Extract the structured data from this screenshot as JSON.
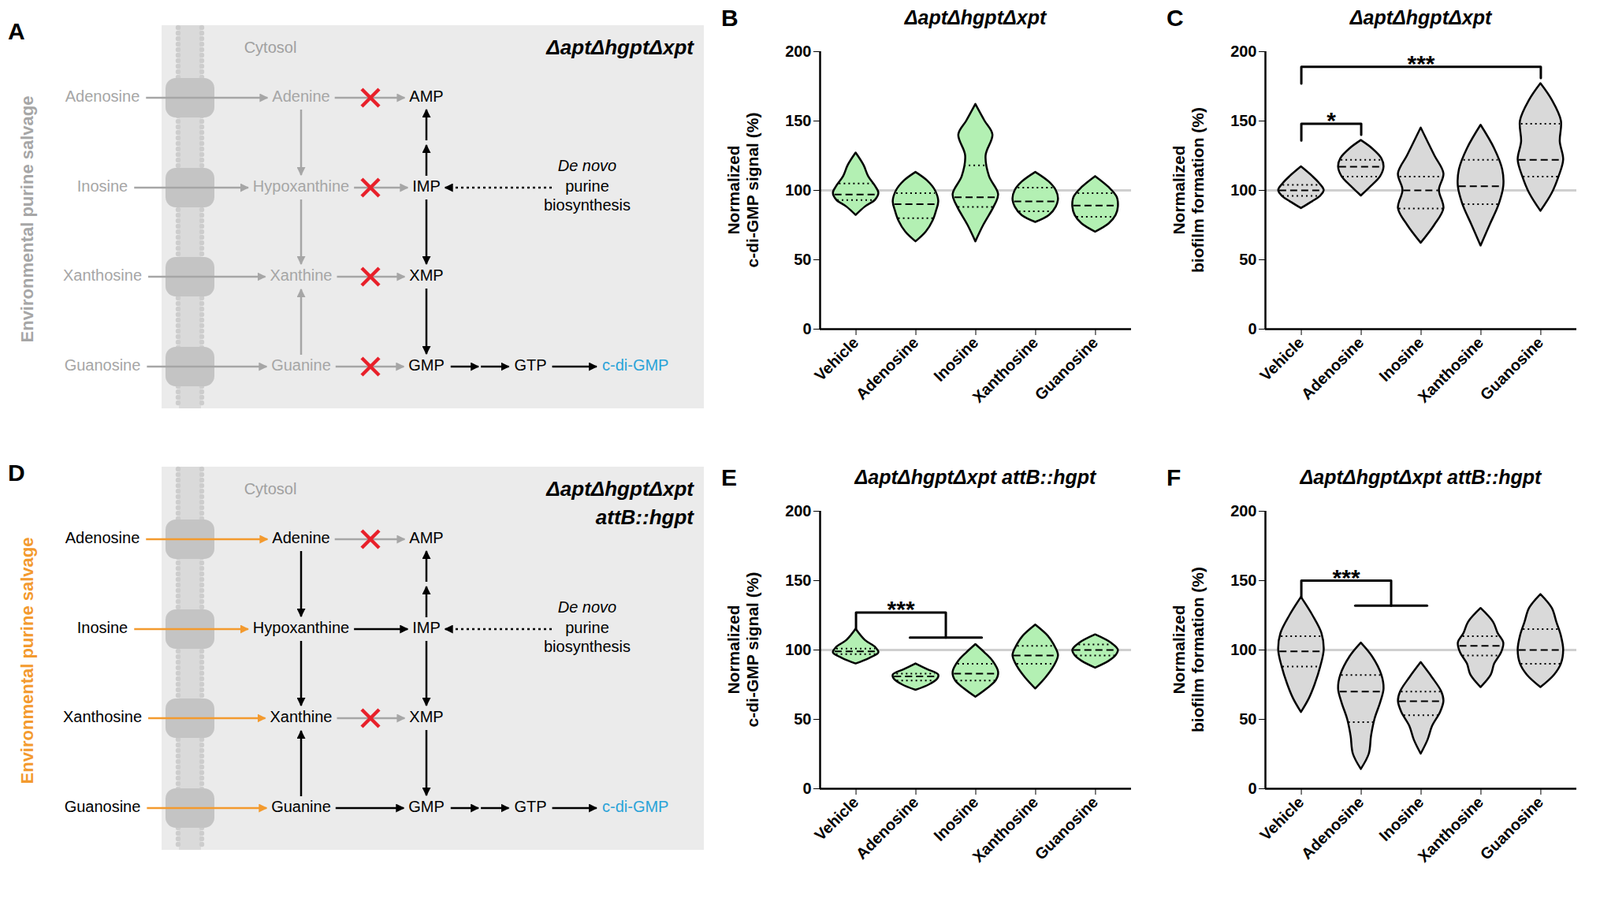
{
  "diagrams": [
    {
      "panel": "A",
      "title": [
        "ΔaptΔhgptΔxpt"
      ],
      "side_label": "Environmental purine salvage",
      "cytosol": "Cytosol",
      "nucleosides": [
        "Adenosine",
        "Inosine",
        "Xanthosine",
        "Guanosine"
      ],
      "bases": [
        "Adenine",
        "Hypoxanthine",
        "Xanthine",
        "Guanine"
      ],
      "nucleotides": [
        "AMP",
        "IMP",
        "XMP",
        "GMP"
      ],
      "de_novo": [
        "De novo",
        "purine",
        "biosynthesis"
      ],
      "downstream": [
        "GTP",
        "c-di-GMP"
      ],
      "blocked": [
        "AMP",
        "IMP",
        "XMP",
        "GMP"
      ],
      "salvage_active": false
    },
    {
      "panel": "D",
      "title": [
        "ΔaptΔhgptΔxpt",
        "attB::hgpt"
      ],
      "side_label": "Environmental purine salvage",
      "cytosol": "Cytosol",
      "nucleosides": [
        "Adenosine",
        "Inosine",
        "Xanthosine",
        "Guanosine"
      ],
      "bases": [
        "Adenine",
        "Hypoxanthine",
        "Xanthine",
        "Guanine"
      ],
      "nucleotides": [
        "AMP",
        "IMP",
        "XMP",
        "GMP"
      ],
      "de_novo": [
        "De novo",
        "purine",
        "biosynthesis"
      ],
      "downstream": [
        "GTP",
        "c-di-GMP"
      ],
      "blocked": [
        "AMP",
        "XMP"
      ],
      "salvage_active": true
    }
  ],
  "chart_data": [
    {
      "panel": "B",
      "type": "violin",
      "title": "ΔaptΔhgptΔxpt",
      "ylabel": "Normalized\nc-di-GMP signal (%)",
      "categories": [
        "Vehicle",
        "Adenosine",
        "Inosine",
        "Xanthosine",
        "Guanosine"
      ],
      "color": "#b3f0b3",
      "ylim": [
        0,
        200
      ],
      "yticks": [
        0,
        50,
        100,
        150,
        200
      ],
      "reference_line": 100,
      "violins": [
        {
          "y": [
            82,
            88,
            93,
            98,
            103,
            110,
            118,
            127
          ],
          "density": [
            0,
            0.4,
            0.85,
            1,
            0.85,
            0.55,
            0.35,
            0
          ],
          "median": 97,
          "q1": 93,
          "q3": 105
        },
        {
          "y": [
            63,
            70,
            78,
            85,
            92,
            100,
            107,
            113
          ],
          "density": [
            0,
            0.45,
            0.75,
            0.9,
            1,
            0.85,
            0.5,
            0
          ],
          "median": 90,
          "q1": 80,
          "q3": 98
        },
        {
          "y": [
            63,
            75,
            88,
            97,
            110,
            125,
            140,
            150,
            162
          ],
          "density": [
            0,
            0.35,
            0.8,
            1,
            0.6,
            0.45,
            0.75,
            0.4,
            0
          ],
          "median": 95,
          "q1": 88,
          "q3": 118
        },
        {
          "y": [
            77,
            82,
            88,
            94,
            100,
            106,
            113
          ],
          "density": [
            0,
            0.6,
            0.9,
            1,
            0.9,
            0.6,
            0
          ],
          "median": 92,
          "q1": 85,
          "q3": 102
        },
        {
          "y": [
            70,
            76,
            82,
            88,
            95,
            102,
            110
          ],
          "density": [
            0,
            0.6,
            0.9,
            1,
            0.95,
            0.6,
            0
          ],
          "median": 89,
          "q1": 81,
          "q3": 98
        }
      ],
      "annotations": []
    },
    {
      "panel": "C",
      "type": "violin",
      "title": "ΔaptΔhgptΔxpt",
      "ylabel": "Normalized\nbiofilm formation (%)",
      "categories": [
        "Vehicle",
        "Adenosine",
        "Inosine",
        "Xanthosine",
        "Guanosine"
      ],
      "color": "#d9d9d9",
      "ylim": [
        0,
        200
      ],
      "yticks": [
        0,
        50,
        100,
        150,
        200
      ],
      "reference_line": 100,
      "violins": [
        {
          "y": [
            87,
            92,
            96,
            100,
            105,
            110,
            117
          ],
          "density": [
            0,
            0.5,
            0.85,
            1,
            0.8,
            0.5,
            0
          ],
          "median": 100,
          "q1": 96,
          "q3": 104
        },
        {
          "y": [
            96,
            103,
            110,
            117,
            123,
            130,
            136
          ],
          "density": [
            0,
            0.45,
            0.85,
            1,
            0.9,
            0.5,
            0
          ],
          "median": 117,
          "q1": 110,
          "q3": 122
        },
        {
          "y": [
            62,
            75,
            87,
            100,
            112,
            125,
            145
          ],
          "density": [
            0,
            0.6,
            1,
            0.8,
            1,
            0.6,
            0
          ],
          "median": 100,
          "q1": 87,
          "q3": 110
        },
        {
          "y": [
            60,
            75,
            90,
            103,
            115,
            130,
            147
          ],
          "density": [
            0,
            0.4,
            0.8,
            1,
            0.95,
            0.6,
            0
          ],
          "median": 103,
          "q1": 90,
          "q3": 122
        },
        {
          "y": [
            85,
            98,
            110,
            122,
            135,
            150,
            165,
            177
          ],
          "density": [
            0,
            0.5,
            0.8,
            1,
            0.85,
            0.9,
            0.5,
            0
          ],
          "median": 122,
          "q1": 110,
          "q3": 148
        }
      ],
      "annotations": [
        {
          "from": "Vehicle",
          "to": [
            "Adenosine"
          ],
          "label": "*"
        },
        {
          "from": "Vehicle",
          "to": [
            "Guanosine"
          ],
          "label": "***"
        }
      ]
    },
    {
      "panel": "E",
      "type": "violin",
      "title": "ΔaptΔhgptΔxpt attB::hgpt",
      "ylabel": "Normalized\nc-di-GMP signal (%)",
      "categories": [
        "Vehicle",
        "Adenosine",
        "Inosine",
        "Xanthosine",
        "Guanosine"
      ],
      "color": "#b3f0b3",
      "ylim": [
        0,
        200
      ],
      "yticks": [
        0,
        50,
        100,
        150,
        200
      ],
      "reference_line": 100,
      "violins": [
        {
          "y": [
            90,
            94,
            98,
            102,
            107,
            115
          ],
          "density": [
            0,
            0.6,
            1,
            0.85,
            0.4,
            0
          ],
          "median": 99,
          "q1": 97,
          "q3": 101
        },
        {
          "y": [
            71,
            75,
            79,
            82,
            86,
            90
          ],
          "density": [
            0,
            0.6,
            0.95,
            1,
            0.5,
            0
          ],
          "median": 81,
          "q1": 78,
          "q3": 83
        },
        {
          "y": [
            66,
            72,
            78,
            84,
            92,
            98,
            104
          ],
          "density": [
            0,
            0.5,
            0.9,
            1,
            0.75,
            0.4,
            0
          ],
          "median": 83,
          "q1": 78,
          "q3": 90
        },
        {
          "y": [
            72,
            80,
            88,
            96,
            104,
            110,
            118
          ],
          "density": [
            0,
            0.45,
            0.8,
            1,
            0.8,
            0.55,
            0
          ],
          "median": 96,
          "q1": 90,
          "q3": 103
        },
        {
          "y": [
            87,
            92,
            96,
            100,
            105,
            111
          ],
          "density": [
            0,
            0.6,
            0.9,
            1,
            0.7,
            0
          ],
          "median": 100,
          "q1": 96,
          "q3": 104
        }
      ],
      "annotations": [
        {
          "from": "Vehicle",
          "to": [
            "Adenosine",
            "Inosine"
          ],
          "label": "***"
        }
      ]
    },
    {
      "panel": "F",
      "type": "violin",
      "title": "ΔaptΔhgptΔxpt attB::hgpt",
      "ylabel": "Normalized\nbiofilm formation (%)",
      "categories": [
        "Vehicle",
        "Adenosine",
        "Inosine",
        "Xanthosine",
        "Guanosine"
      ],
      "color": "#d9d9d9",
      "ylim": [
        0,
        200
      ],
      "yticks": [
        0,
        50,
        100,
        150,
        200
      ],
      "reference_line": 100,
      "violins": [
        {
          "y": [
            55,
            65,
            75,
            88,
            100,
            112,
            125,
            138
          ],
          "density": [
            0,
            0.35,
            0.6,
            0.85,
            1,
            0.9,
            0.5,
            0
          ],
          "median": 99,
          "q1": 88,
          "q3": 110
        },
        {
          "y": [
            14,
            25,
            38,
            50,
            62,
            72,
            82,
            95,
            105
          ],
          "density": [
            0,
            0.35,
            0.45,
            0.6,
            0.85,
            1,
            0.9,
            0.5,
            0
          ],
          "median": 70,
          "q1": 48,
          "q3": 82
        },
        {
          "y": [
            25,
            35,
            45,
            55,
            63,
            70,
            80,
            91
          ],
          "density": [
            0,
            0.3,
            0.5,
            0.85,
            1,
            0.9,
            0.5,
            0
          ],
          "median": 63,
          "q1": 53,
          "q3": 70
        },
        {
          "y": [
            73,
            82,
            90,
            98,
            105,
            112,
            120,
            130
          ],
          "density": [
            0,
            0.45,
            0.6,
            0.9,
            1,
            0.75,
            0.55,
            0
          ],
          "median": 103,
          "q1": 96,
          "q3": 110
        },
        {
          "y": [
            73,
            82,
            90,
            100,
            110,
            120,
            130,
            140
          ],
          "density": [
            0,
            0.6,
            0.9,
            1,
            0.9,
            0.7,
            0.5,
            0
          ],
          "median": 100,
          "q1": 90,
          "q3": 115
        }
      ],
      "annotations": [
        {
          "from": "Vehicle",
          "to": [
            "Adenosine",
            "Inosine"
          ],
          "label": "***"
        }
      ]
    }
  ]
}
